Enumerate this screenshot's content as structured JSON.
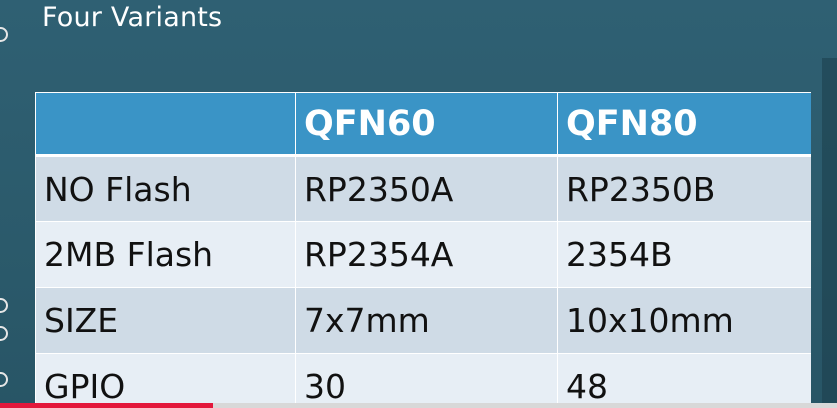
{
  "slide": {
    "title": "Four Variants"
  },
  "table": {
    "headers": [
      "",
      "QFN60",
      "QFN80"
    ],
    "rows": [
      [
        "NO Flash",
        "RP2350A",
        "RP2350B"
      ],
      [
        "2MB Flash",
        "RP2354A",
        "2354B"
      ],
      [
        "SIZE",
        "7x7mm",
        "10x10mm"
      ],
      [
        "GPIO",
        "30",
        "48"
      ]
    ]
  },
  "colors": {
    "background": "#2b5b6c",
    "header": "#3a94c6",
    "row_odd": "#cfdbe6",
    "row_even": "#e7eef5",
    "progress": "#e3173b"
  },
  "video_progress": 0.255
}
